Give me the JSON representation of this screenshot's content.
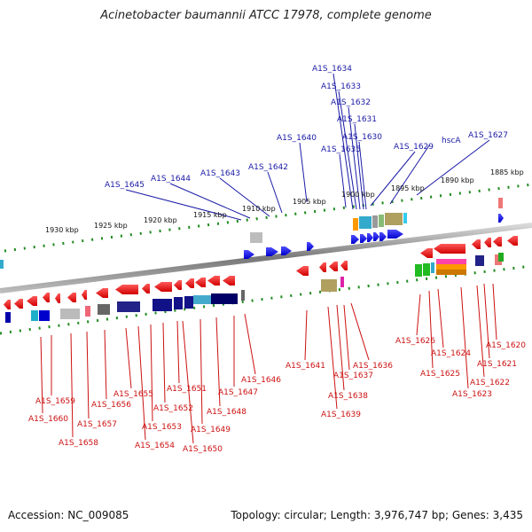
{
  "title": "Acinetobacter baumannii ATCC 17978, complete genome",
  "footer": {
    "accession": "Accession: NC_009085",
    "topology": "Topology: circular; Length: 3,976,747 bp; Genes: 3,435"
  },
  "kbp_ticks": [
    "1885 kbp",
    "1890 kbp",
    "1895 kbp",
    "1900 kbp",
    "1905 kbp",
    "1910 kbp",
    "1915 kbp",
    "1920 kbp",
    "1925 kbp",
    "1930 kbp"
  ],
  "upper_genes": [
    "hscA",
    "A1S_1627",
    "A1S_1629",
    "A1S_1630",
    "A1S_1631",
    "A1S_1632",
    "A1S_1633",
    "A1S_1634",
    "A1S_1635",
    "A1S_1640",
    "A1S_1642",
    "A1S_1643",
    "A1S_1644",
    "A1S_1645"
  ],
  "lower_genes": [
    "A1S_1620",
    "A1S_1621",
    "A1S_1622",
    "A1S_1623",
    "A1S_1624",
    "A1S_1625",
    "A1S_1626",
    "A1S_1636",
    "A1S_1637",
    "A1S_1638",
    "A1S_1639",
    "A1S_1641",
    "A1S_1646",
    "A1S_1647",
    "A1S_1648",
    "A1S_1649",
    "A1S_1650",
    "A1S_1651",
    "A1S_1652",
    "A1S_1653",
    "A1S_1654",
    "A1S_1655",
    "A1S_1656",
    "A1S_1657",
    "A1S_1658",
    "A1S_1659",
    "A1S_1660"
  ],
  "colors": {
    "forward": "#0000ee",
    "reverse": "#ee0000",
    "backbone": "#888888",
    "ticks": "#228b22",
    "upper_label": "#1a1aa6",
    "lower_label": "#cc1111"
  }
}
